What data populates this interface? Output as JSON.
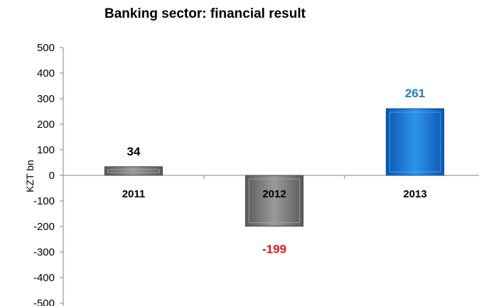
{
  "chart_data": {
    "type": "bar",
    "title": "Banking sector: financial result",
    "ylabel": "KZT bn",
    "xlabel": "",
    "categories": [
      "2011",
      "2012",
      "2013"
    ],
    "values": [
      34,
      -199,
      261
    ],
    "value_labels": [
      "34",
      "-199",
      "261"
    ],
    "value_label_colors": [
      "#000000",
      "#e8151b",
      "#1f7cc8"
    ],
    "bar_colors": [
      "#7f7f7f",
      "#7f7f7f",
      "#1f7fe0"
    ],
    "ylim": [
      -500,
      500
    ],
    "yticks": [
      500,
      400,
      300,
      200,
      100,
      0,
      -100,
      -200,
      -300,
      -400,
      -500
    ],
    "ytick_labels": [
      "500",
      "400",
      "300",
      "200",
      "100",
      "0",
      "-100",
      "-200",
      "-300",
      "-400",
      "-500"
    ],
    "grid": false,
    "legend": "none"
  }
}
